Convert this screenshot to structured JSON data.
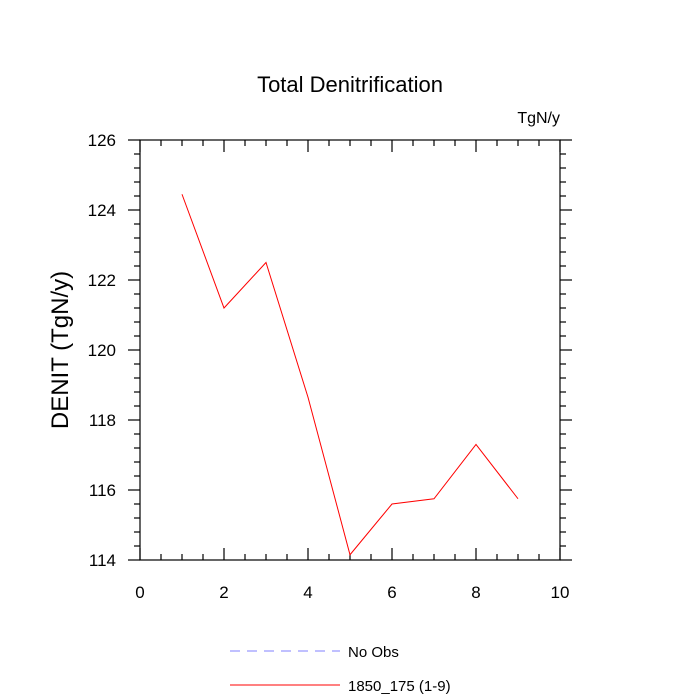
{
  "chart_data": {
    "type": "line",
    "title": "Total Denitrification",
    "units_label": "TgN/y",
    "ylabel": "DENIT  (TgN/y)",
    "xlim": [
      0,
      10
    ],
    "ylim": [
      114,
      126
    ],
    "x_ticks": [
      0,
      2,
      4,
      6,
      8,
      10
    ],
    "y_ticks": [
      114,
      116,
      118,
      120,
      122,
      124,
      126
    ],
    "grid": false,
    "legend_position": "bottom",
    "series": [
      {
        "name": "1850_175 (1-9)",
        "color": "#ff0000",
        "dash": "solid",
        "x": [
          1,
          2,
          3,
          4,
          5,
          6,
          7,
          8,
          9
        ],
        "y": [
          124.45,
          121.2,
          122.5,
          118.65,
          114.15,
          115.6,
          115.75,
          117.3,
          115.75
        ]
      }
    ],
    "legend": [
      {
        "label": "No Obs",
        "color": "#8080ff",
        "dash": "dashed"
      },
      {
        "label": "1850_175 (1-9)",
        "color": "#ff0000",
        "dash": "solid"
      }
    ]
  }
}
